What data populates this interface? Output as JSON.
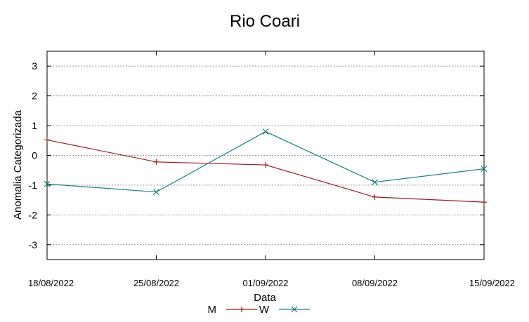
{
  "chart_data": {
    "type": "line",
    "title": "Rio Coari",
    "xlabel": "Data",
    "ylabel": "Anomalia Categorizada",
    "categories": [
      "18/08/2022",
      "25/08/2022",
      "01/09/2022",
      "08/09/2022",
      "15/09/2022"
    ],
    "ylim": [
      -3.5,
      3.5
    ],
    "yticks": [
      3,
      2,
      1,
      0,
      -1,
      -2,
      -3
    ],
    "ytick_labels": [
      "3",
      "2",
      "1",
      "0",
      "-1",
      "-2",
      "-3"
    ],
    "grid": true,
    "legend_position": "bottom",
    "series": [
      {
        "name": "M",
        "color": "#9b1c1c",
        "marker": "plus",
        "values": [
          0.52,
          -0.22,
          -0.32,
          -1.4,
          -1.57
        ]
      },
      {
        "name": "W",
        "color": "#1a7f80",
        "marker": "cross",
        "values": [
          -0.96,
          -1.23,
          0.8,
          -0.9,
          -0.45
        ]
      }
    ]
  }
}
